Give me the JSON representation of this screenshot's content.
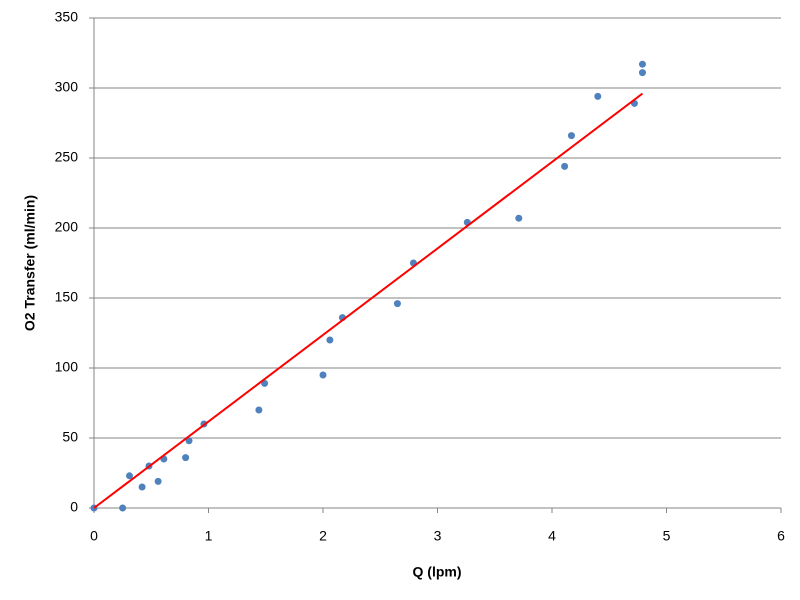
{
  "chart_data": {
    "type": "scatter",
    "x_label": "Q (lpm)",
    "y_label": "O2 Transfer (ml/min)",
    "x": [
      0,
      0.25,
      0.31,
      0.42,
      0.48,
      0.56,
      0.61,
      0.8,
      0.83,
      0.96,
      1.44,
      1.49,
      2.0,
      2.06,
      2.17,
      2.65,
      2.79,
      3.26,
      3.71,
      4.11,
      4.17,
      4.4,
      4.72,
      4.79,
      4.79
    ],
    "values": [
      0,
      0,
      23,
      15,
      30,
      19,
      35,
      36,
      48,
      60,
      70,
      89,
      95,
      120,
      136,
      146,
      175,
      204,
      207,
      244,
      266,
      294,
      289,
      311,
      317
    ],
    "color": "#4f81bd",
    "trendline": {
      "x": [
        0,
        4.79
      ],
      "values": [
        0,
        296
      ],
      "color": "#ff0000"
    },
    "xlim": [
      0,
      6
    ],
    "xticks": [
      0,
      1,
      2,
      3,
      4,
      5,
      6
    ],
    "ylim": [
      0,
      350
    ],
    "yticks": [
      0,
      50,
      100,
      150,
      200,
      250,
      300,
      350
    ],
    "grid": true
  }
}
